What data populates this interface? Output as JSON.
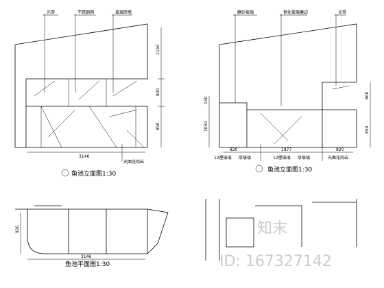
{
  "left_elevation": {
    "callouts": [
      "光带",
      "不锈钢网",
      "玻璃砖墙"
    ],
    "dims": [
      "1150",
      "800",
      "850"
    ],
    "width": "3146",
    "bottom_note": "光面花岗岩",
    "title": "鱼池立面图1:30"
  },
  "right_elevation": {
    "callouts": [
      "磨砂玻璃",
      "钢化玻璃磨边",
      "光带"
    ],
    "dims_left": [
      "150",
      "1050"
    ],
    "dims_right": [
      "800",
      "950"
    ],
    "widths": [
      "820",
      "1877",
      "820"
    ],
    "bottom_notes": [
      "12厘玻璃",
      "厚玻璃",
      "12厘玻璃",
      "厚玻璃",
      "光面花岗岩"
    ],
    "title": "鱼池立面图1:30"
  },
  "plan": {
    "dim": "920",
    "width": "3146",
    "title": "鱼池平面图1:30"
  },
  "watermark": {
    "logo": "知末",
    "id": "ID: 167327142"
  }
}
